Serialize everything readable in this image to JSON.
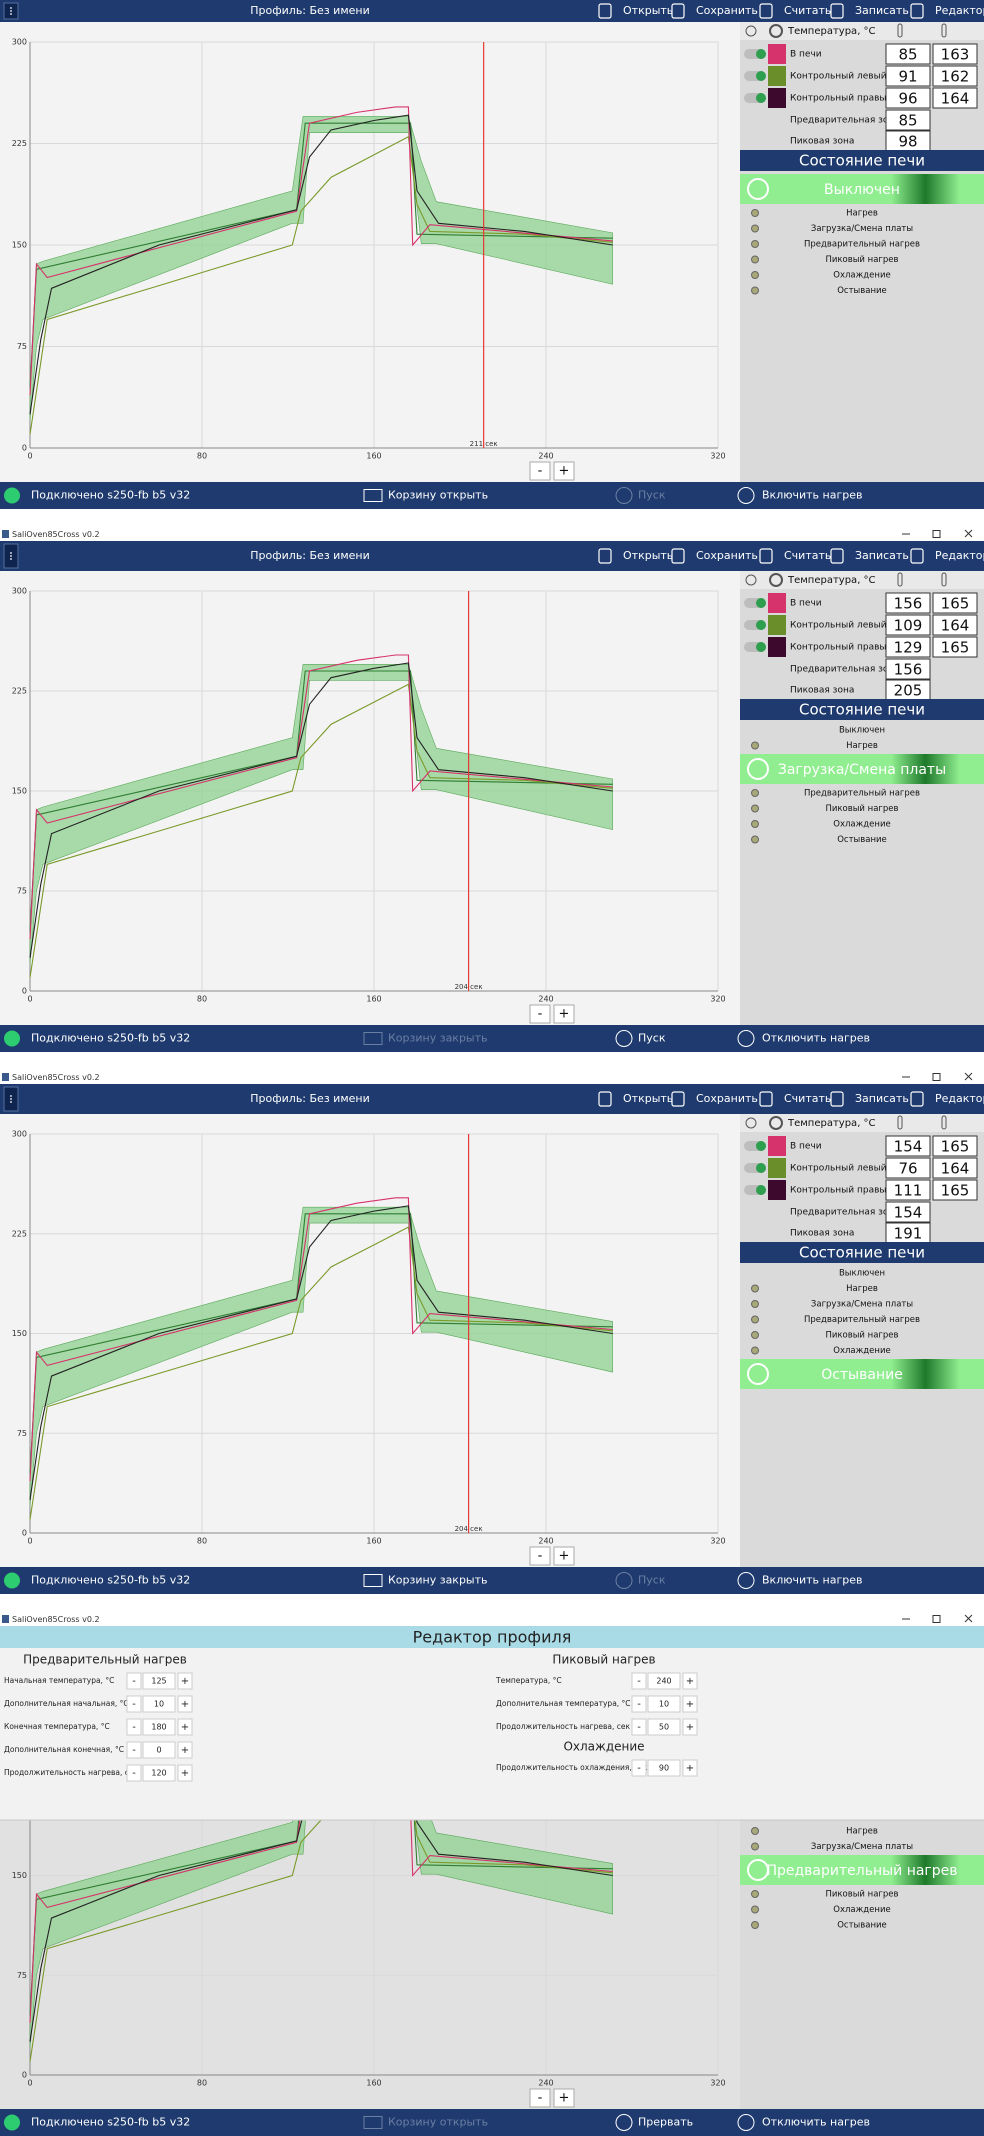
{
  "window_title": "SaliOven85Cross v0.2",
  "toolbar": {
    "profile": "Профиль: Без имени",
    "buttons": [
      "Открыть",
      "Сохранить",
      "Считать",
      "Записать",
      "Редактор"
    ]
  },
  "temp_header": "Температура, °C",
  "state_header": "Состояние печи",
  "minus_plus": [
    "-",
    "+"
  ],
  "chart": {
    "xlim": [
      0,
      320
    ],
    "ylim": [
      0,
      300
    ],
    "xticks": [
      0,
      80,
      160,
      240,
      320
    ],
    "yticks": [
      0,
      75,
      150,
      225,
      300
    ],
    "band": {
      "color": "#8fd08f",
      "x": [
        0,
        3,
        6,
        122,
        127,
        130,
        176,
        182,
        189,
        271
      ],
      "upper": [
        40,
        136,
        138,
        190,
        245,
        245,
        245,
        212,
        182,
        159
      ],
      "lower": [
        20,
        75,
        95,
        166,
        166,
        233,
        233,
        151,
        151,
        121
      ]
    },
    "series": [
      {
        "color": "#2e7d32",
        "x": [
          0,
          3,
          124,
          128,
          177,
          180,
          271
        ],
        "values": [
          45,
          132,
          176,
          240,
          240,
          158,
          155
        ]
      },
      {
        "color": "#7a9a2a",
        "x": [
          0,
          8,
          60,
          122,
          126,
          140,
          170,
          176,
          180,
          186,
          230,
          271
        ],
        "values": [
          10,
          95,
          120,
          150,
          175,
          200,
          225,
          230,
          180,
          160,
          158,
          152
        ]
      },
      {
        "color": "#d6336c",
        "x": [
          0,
          3,
          8,
          124,
          130,
          152,
          170,
          176,
          178,
          186,
          271
        ],
        "values": [
          39,
          136,
          126,
          175,
          240,
          248,
          252,
          252,
          150,
          165,
          153
        ]
      },
      {
        "color": "#222222",
        "x": [
          0,
          5,
          10,
          60,
          124,
          130,
          140,
          160,
          176,
          180,
          190,
          230,
          271
        ],
        "values": [
          25,
          80,
          118,
          150,
          176,
          215,
          235,
          242,
          246,
          190,
          166,
          160,
          150
        ]
      }
    ]
  },
  "panels": [
    {
      "title_bar": false,
      "temps": [
        {
          "name": "В печи",
          "color": "#d6336c",
          "values": [
            85,
            163
          ]
        },
        {
          "name": "Контрольный левый",
          "color": "#6a8f2a",
          "values": [
            91,
            162
          ]
        },
        {
          "name": "Контрольный правый",
          "color": "#3d0a2e",
          "values": [
            96,
            164
          ]
        }
      ],
      "zones": [
        {
          "name": "Предварительная зона",
          "value": 85
        },
        {
          "name": "Пиковая зона",
          "value": 98
        }
      ],
      "states": [
        "Выключен",
        "Нагрев",
        "Загрузка/Смена платы",
        "Предварительный нагрев",
        "Пиковый нагрев",
        "Охлаждение",
        "Остывание"
      ],
      "active": 0,
      "cursor": {
        "value": 211,
        "label": "211 сек"
      },
      "status": {
        "connection": "Подключено s250-fb b5 v32",
        "basket": {
          "text": "Корзину открыть",
          "enabled": true
        },
        "run": {
          "text": "Пуск",
          "enabled": false
        },
        "heat": {
          "text": "Включить нагрев",
          "enabled": true
        }
      }
    },
    {
      "title_bar": true,
      "temps": [
        {
          "name": "В печи",
          "color": "#d6336c",
          "values": [
            156,
            165
          ]
        },
        {
          "name": "Контрольный левый",
          "color": "#6a8f2a",
          "values": [
            109,
            164
          ]
        },
        {
          "name": "Контрольный правый",
          "color": "#3d0a2e",
          "values": [
            129,
            165
          ]
        }
      ],
      "zones": [
        {
          "name": "Предварительная зона",
          "value": 156
        },
        {
          "name": "Пиковая зона",
          "value": 205
        }
      ],
      "states": [
        "Выключен",
        "Нагрев",
        "Загрузка/Смена платы",
        "Предварительный нагрев",
        "Пиковый нагрев",
        "Охлаждение",
        "Остывание"
      ],
      "active": 2,
      "cursor": {
        "value": 204,
        "label": "204 сек"
      },
      "status": {
        "connection": "Подключено s250-fb b5 v32",
        "basket": {
          "text": "Корзину закрыть",
          "enabled": false
        },
        "run": {
          "text": "Пуск",
          "enabled": true
        },
        "heat": {
          "text": "Отключить нагрев",
          "enabled": true
        }
      }
    },
    {
      "title_bar": true,
      "temps": [
        {
          "name": "В печи",
          "color": "#d6336c",
          "values": [
            154,
            165
          ]
        },
        {
          "name": "Контрольный левый",
          "color": "#6a8f2a",
          "values": [
            76,
            164
          ]
        },
        {
          "name": "Контрольный правый",
          "color": "#3d0a2e",
          "values": [
            111,
            165
          ]
        }
      ],
      "zones": [
        {
          "name": "Предварительная зона",
          "value": 154
        },
        {
          "name": "Пиковая зона",
          "value": 191
        }
      ],
      "states": [
        "Выключен",
        "Нагрев",
        "Загрузка/Смена платы",
        "Предварительный нагрев",
        "Пиковый нагрев",
        "Охлаждение",
        "Остывание"
      ],
      "active": 6,
      "cursor": {
        "value": 204,
        "label": "204 сек"
      },
      "status": {
        "connection": "Подключено s250-fb b5 v32",
        "basket": {
          "text": "Корзину закрыть",
          "enabled": true
        },
        "run": {
          "text": "Пуск",
          "enabled": false
        },
        "heat": {
          "text": "Включить нагрев",
          "enabled": true
        }
      }
    },
    {
      "title_bar": true,
      "states": [
        "Нагрев",
        "Загрузка/Смена платы",
        "Предварительный нагрев",
        "Пиковый нагрев",
        "Охлаждение",
        "Остывание"
      ],
      "active": 2,
      "status": {
        "connection": "Подключено s250-fb b5 v32",
        "basket": {
          "text": "Корзину открыть",
          "enabled": false
        },
        "run": {
          "text": "Прервать",
          "enabled": true
        },
        "heat": {
          "text": "Отключить нагрев",
          "enabled": true
        }
      },
      "editor": {
        "title": "Редактор профиля",
        "sections": [
          {
            "title": "Предварительный нагрев",
            "fields": [
              {
                "label": "Начальная температура, °C",
                "value": 125
              },
              {
                "label": "Дополнительная начальная, °C",
                "value": 10
              },
              {
                "label": "Конечная температура, °C",
                "value": 180
              },
              {
                "label": "Дополнительная конечная, °C",
                "value": 0
              },
              {
                "label": "Продолжительность нагрева, сек",
                "value": 120
              }
            ]
          },
          {
            "title": "Пиковый нагрев",
            "fields": [
              {
                "label": "Температура, °C",
                "value": 240
              },
              {
                "label": "Дополнительная температура, °C",
                "value": 10
              },
              {
                "label": "Продолжительность нагрева, сек",
                "value": 50
              }
            ]
          },
          {
            "title": "Охлаждение",
            "fields": [
              {
                "label": "Продолжительность охлаждения, сек",
                "value": 90
              }
            ]
          }
        ]
      }
    }
  ]
}
